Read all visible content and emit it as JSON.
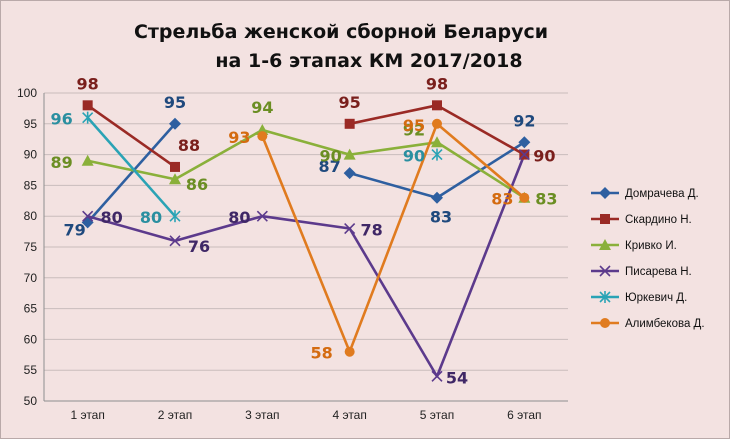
{
  "chart_data": {
    "type": "line",
    "title_line1": "Стрельба женской сборной Беларуси",
    "title_line2": "на 1-6 этапах КМ 2017/2018",
    "categories": [
      "1 этап",
      "2 этап",
      "3 этап",
      "4 этап",
      "5 этап",
      "6 этап"
    ],
    "ylim": [
      50,
      100
    ],
    "ytick_step": 5,
    "grid": true,
    "legend_position": "right",
    "series": [
      {
        "name": "Домрачева Д.",
        "color": "#2e5fa0",
        "marker": "diamond",
        "label_color": "#1f497d",
        "values": [
          79,
          95,
          null,
          87,
          83,
          92
        ],
        "labels": [
          "79",
          "95",
          "",
          "87",
          "83",
          "92"
        ]
      },
      {
        "name": "Скардино Н.",
        "color": "#9a2a25",
        "marker": "square",
        "label_color": "#7a1f1c",
        "values": [
          98,
          88,
          null,
          95,
          98,
          90
        ],
        "labels": [
          "98",
          "88",
          "",
          "95",
          "98",
          "90"
        ]
      },
      {
        "name": "Кривко И.",
        "color": "#8ab03a",
        "marker": "triangle",
        "label_color": "#6b8e23",
        "values": [
          89,
          86,
          94,
          90,
          92,
          83
        ],
        "labels": [
          "89",
          "86",
          "94",
          "90",
          "92",
          "83"
        ]
      },
      {
        "name": "Писарева Н.",
        "color": "#5c3a8c",
        "marker": "x",
        "label_color": "#3f2766",
        "values": [
          80,
          76,
          80,
          78,
          54,
          90
        ],
        "labels": [
          "80",
          "76",
          "80",
          "78",
          "54",
          ""
        ]
      },
      {
        "name": "Юркевич Д.",
        "color": "#2aa3b5",
        "marker": "star",
        "label_color": "#2a8fa0",
        "values": [
          96,
          80,
          null,
          null,
          90,
          null
        ],
        "labels": [
          "96",
          "80",
          "",
          "",
          "90",
          ""
        ]
      },
      {
        "name": "Алимбекова Д.",
        "color": "#e07b1f",
        "marker": "circle",
        "label_color": "#d46b10",
        "values": [
          null,
          null,
          93,
          58,
          95,
          83
        ],
        "labels": [
          "",
          "",
          "93",
          "58",
          "95",
          "83"
        ]
      }
    ]
  }
}
